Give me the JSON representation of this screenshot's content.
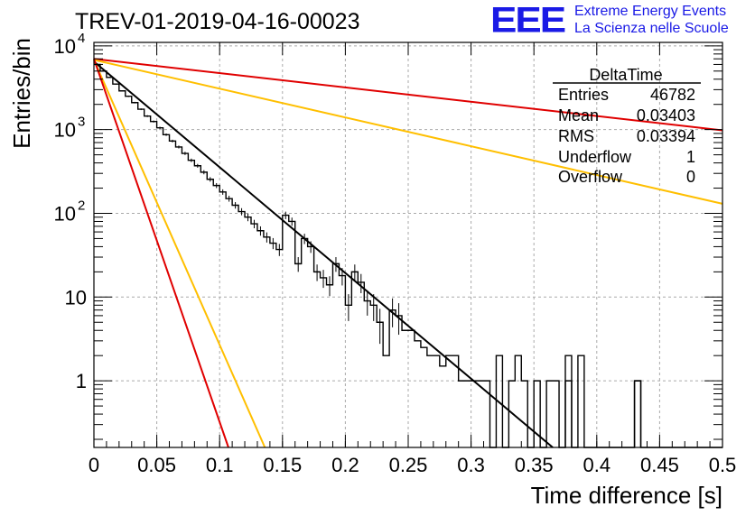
{
  "header": {
    "title": "TREV-01-2019-04-16-00023",
    "logo_text": "EEE",
    "logo_line1": "Extreme Energy Events",
    "logo_line2": "La Scienza nelle Scuole",
    "logo_color": "#1a1ae6"
  },
  "stats": {
    "name": "DeltaTime",
    "rows": [
      {
        "label": "Entries",
        "value": "46782"
      },
      {
        "label": "Mean",
        "value": "0.03403"
      },
      {
        "label": "RMS",
        "value": "0.03394"
      },
      {
        "label": "Underflow",
        "value": "1"
      },
      {
        "label": "Overflow",
        "value": "0"
      }
    ]
  },
  "chart_data": {
    "type": "line",
    "title": "TREV-01-2019-04-16-00023",
    "xlabel": "Time difference [s]",
    "ylabel": "Entries/bin",
    "xlim": [
      0,
      0.5
    ],
    "ylim": [
      0.16,
      11000
    ],
    "yscale": "log",
    "grid": true,
    "legend": "stats box top-right",
    "x_ticks": [
      {
        "v": 0,
        "label": "0"
      },
      {
        "v": 0.05,
        "label": "0.05"
      },
      {
        "v": 0.1,
        "label": "0.1"
      },
      {
        "v": 0.15,
        "label": "0.15"
      },
      {
        "v": 0.2,
        "label": "0.2"
      },
      {
        "v": 0.25,
        "label": "0.25"
      },
      {
        "v": 0.3,
        "label": "0.3"
      },
      {
        "v": 0.35,
        "label": "0.35"
      },
      {
        "v": 0.4,
        "label": "0.4"
      },
      {
        "v": 0.45,
        "label": "0.45"
      },
      {
        "v": 0.5,
        "label": "0.5"
      }
    ],
    "y_ticks": [
      {
        "v": 1,
        "label": "1"
      },
      {
        "v": 10,
        "label": "10"
      },
      {
        "v": 100,
        "label": "10",
        "exp": "2"
      },
      {
        "v": 1000,
        "label": "10",
        "exp": "3"
      },
      {
        "v": 10000,
        "label": "10",
        "exp": "4"
      }
    ],
    "histogram": {
      "name": "DeltaTime",
      "bin_width": 0.005,
      "color": "#000000",
      "counts": [
        6000,
        5000,
        4200,
        3500,
        2900,
        2500,
        2100,
        1750,
        1450,
        1250,
        1050,
        870,
        730,
        620,
        520,
        430,
        370,
        310,
        255,
        215,
        180,
        150,
        125,
        105,
        90,
        75,
        62,
        52,
        44,
        37,
        95,
        80,
        25,
        50,
        40,
        20,
        17,
        14,
        25,
        18,
        8,
        20,
        15,
        9,
        8,
        5,
        2,
        7,
        6,
        4,
        4,
        3,
        2.5,
        2,
        2,
        1.5,
        2,
        2,
        1,
        1,
        1,
        1,
        1,
        0,
        2,
        0,
        1,
        2,
        1,
        0,
        1,
        0,
        1,
        1,
        0,
        2,
        0,
        2,
        0,
        0,
        0,
        0,
        0,
        0,
        0,
        0,
        1,
        0,
        0,
        0,
        0,
        0,
        0,
        0,
        0,
        0,
        0,
        0,
        0,
        0
      ],
      "note_extra_isolated_ones_at": [
        0.375,
        0.43
      ]
    },
    "fits": [
      {
        "color": "#000000",
        "x": [
          0,
          0.365
        ],
        "y": [
          6500,
          0.16
        ]
      },
      {
        "color": "#e00000",
        "x": [
          0,
          0.5
        ],
        "y": [
          7000,
          980
        ]
      },
      {
        "color": "#ffbf00",
        "x": [
          0,
          0.5
        ],
        "y": [
          6800,
          130
        ]
      },
      {
        "color": "#ffbf00",
        "x": [
          0,
          0.136
        ],
        "y": [
          6800,
          0.16
        ]
      },
      {
        "color": "#e00000",
        "x": [
          0,
          0.107
        ],
        "y": [
          7000,
          0.16
        ]
      }
    ]
  }
}
